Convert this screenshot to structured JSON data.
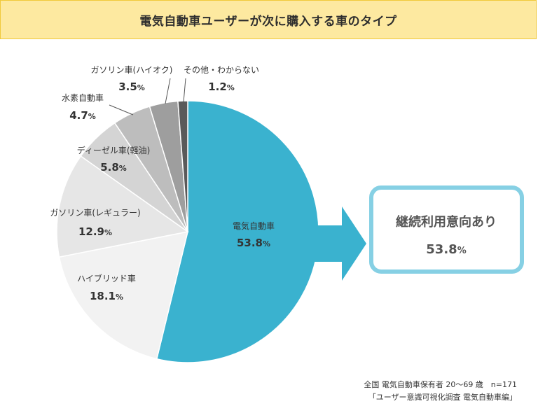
{
  "title": "電気自動車ユーザーが次に購入する車のタイプ",
  "chart_data": {
    "type": "pie",
    "title": "電気自動車ユーザーが次に購入する車のタイプ",
    "slices": [
      {
        "label": "電気自動車",
        "value": 53.8,
        "value_label": "53.8",
        "color": "#3ab2cf"
      },
      {
        "label": "ハイブリッド車",
        "value": 18.1,
        "value_label": "18.1",
        "color": "#f2f2f2"
      },
      {
        "label": "ガソリン車(レギュラー)",
        "value": 12.9,
        "value_label": "12.9",
        "color": "#e6e6e6"
      },
      {
        "label": "ディーゼル車(軽油)",
        "value": 5.8,
        "value_label": "5.8",
        "color": "#d4d4d4"
      },
      {
        "label": "水素自動車",
        "value": 4.7,
        "value_label": "4.7",
        "color": "#bdbdbd"
      },
      {
        "label": "ガソリン車(ハイオク)",
        "value": 3.5,
        "value_label": "3.5",
        "color": "#9e9e9e"
      },
      {
        "label": "その他・わからない",
        "value": 1.2,
        "value_label": "1.2",
        "color": "#5a5a5a"
      }
    ],
    "percent_sign": "%",
    "start": "12 o'clock",
    "direction": "clockwise"
  },
  "callout": {
    "label": "継続利用意向あり",
    "value": "53.8",
    "percent_sign": "%",
    "border_color": "#86d0e4",
    "arrow_color": "#3ab2cf"
  },
  "footnotes": [
    "全国 電気自動車保有者 20～69 歳　n=171",
    "「ユーザー意識可視化調査 電気自動車編」"
  ]
}
